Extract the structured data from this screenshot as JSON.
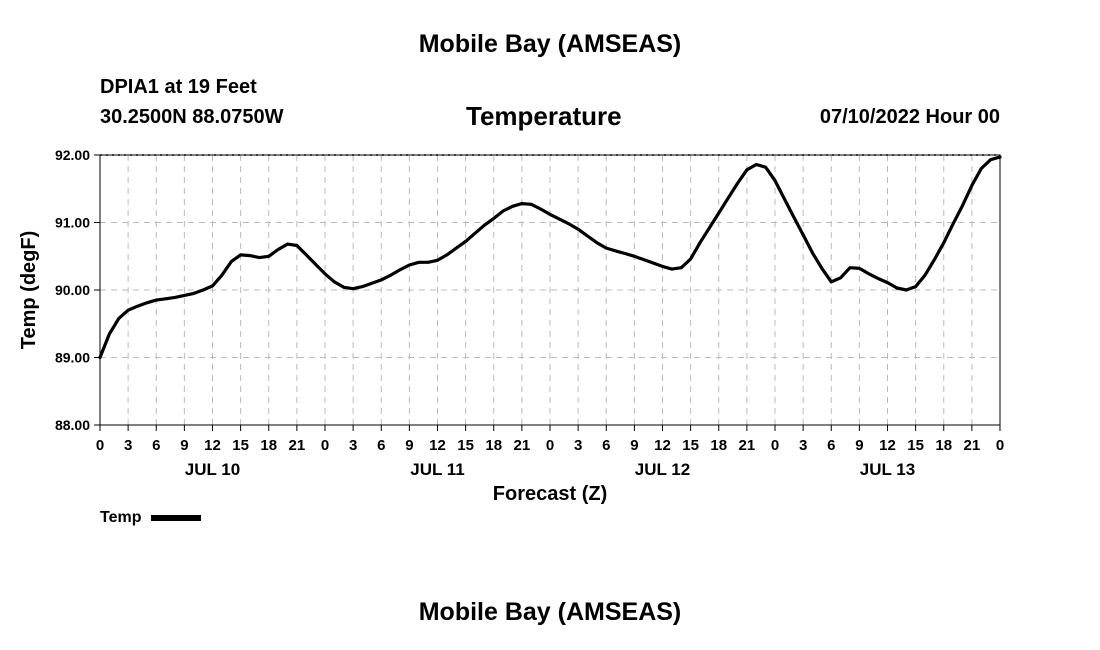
{
  "page": {
    "main_title": "Mobile Bay (AMSEAS)",
    "bottom_title": "Mobile Bay (AMSEAS)",
    "station": "DPIA1 at 19 Feet",
    "coords": "30.2500N  88.0750W",
    "valid_time": "07/10/2022 Hour 00"
  },
  "chart_data": {
    "type": "line",
    "title": "Temperature",
    "xlabel": "Forecast (Z)",
    "ylabel": "Temp (degF)",
    "x_unit": "hours",
    "xlim": [
      0,
      96
    ],
    "ylim": [
      88.0,
      92.0
    ],
    "y_ticks": [
      "88.00",
      "89.00",
      "90.00",
      "91.00",
      "92.00"
    ],
    "x_ticks": [
      {
        "h": 0,
        "label": "0"
      },
      {
        "h": 3,
        "label": "3"
      },
      {
        "h": 6,
        "label": "6"
      },
      {
        "h": 9,
        "label": "9"
      },
      {
        "h": 12,
        "label": "12"
      },
      {
        "h": 15,
        "label": "15"
      },
      {
        "h": 18,
        "label": "18"
      },
      {
        "h": 21,
        "label": "21"
      },
      {
        "h": 24,
        "label": "0"
      },
      {
        "h": 27,
        "label": "3"
      },
      {
        "h": 30,
        "label": "6"
      },
      {
        "h": 33,
        "label": "9"
      },
      {
        "h": 36,
        "label": "12"
      },
      {
        "h": 39,
        "label": "15"
      },
      {
        "h": 42,
        "label": "18"
      },
      {
        "h": 45,
        "label": "21"
      },
      {
        "h": 48,
        "label": "0"
      },
      {
        "h": 51,
        "label": "3"
      },
      {
        "h": 54,
        "label": "6"
      },
      {
        "h": 57,
        "label": "9"
      },
      {
        "h": 60,
        "label": "12"
      },
      {
        "h": 63,
        "label": "15"
      },
      {
        "h": 66,
        "label": "18"
      },
      {
        "h": 69,
        "label": "21"
      },
      {
        "h": 72,
        "label": "0"
      },
      {
        "h": 75,
        "label": "3"
      },
      {
        "h": 78,
        "label": "6"
      },
      {
        "h": 81,
        "label": "9"
      },
      {
        "h": 84,
        "label": "12"
      },
      {
        "h": 87,
        "label": "15"
      },
      {
        "h": 90,
        "label": "18"
      },
      {
        "h": 93,
        "label": "21"
      },
      {
        "h": 96,
        "label": "0"
      }
    ],
    "day_labels": [
      {
        "h": 12,
        "label": "JUL 10"
      },
      {
        "h": 36,
        "label": "JUL 11"
      },
      {
        "h": 60,
        "label": "JUL 12"
      },
      {
        "h": 84,
        "label": "JUL 13"
      }
    ],
    "grid": true,
    "legend": "bottom-left",
    "series": [
      {
        "name": "Temp",
        "color": "#000000",
        "x": [
          0,
          1,
          2,
          3,
          4,
          5,
          6,
          7,
          8,
          9,
          10,
          11,
          12,
          13,
          14,
          15,
          16,
          17,
          18,
          19,
          20,
          21,
          22,
          23,
          24,
          25,
          26,
          27,
          28,
          29,
          30,
          31,
          32,
          33,
          34,
          35,
          36,
          37,
          38,
          39,
          40,
          41,
          42,
          43,
          44,
          45,
          46,
          47,
          48,
          49,
          50,
          51,
          52,
          53,
          54,
          55,
          56,
          57,
          58,
          59,
          60,
          61,
          62,
          63,
          64,
          65,
          66,
          67,
          68,
          69,
          70,
          71,
          72,
          73,
          74,
          75,
          76,
          77,
          78,
          79,
          80,
          81,
          82,
          83,
          84,
          85,
          86,
          87,
          88,
          89,
          90,
          91,
          92,
          93,
          94,
          95,
          96
        ],
        "values": [
          89.0,
          89.35,
          89.58,
          89.7,
          89.76,
          89.81,
          89.85,
          89.87,
          89.89,
          89.92,
          89.95,
          90.0,
          90.06,
          90.22,
          90.42,
          90.52,
          90.51,
          90.48,
          90.5,
          90.6,
          90.68,
          90.66,
          90.52,
          90.38,
          90.24,
          90.12,
          90.04,
          90.02,
          90.05,
          90.1,
          90.15,
          90.22,
          90.3,
          90.37,
          90.41,
          90.41,
          90.44,
          90.52,
          90.62,
          90.72,
          90.84,
          90.96,
          91.06,
          91.17,
          91.24,
          91.28,
          91.27,
          91.2,
          91.12,
          91.05,
          90.98,
          90.9,
          90.8,
          90.7,
          90.62,
          90.58,
          90.54,
          90.5,
          90.45,
          90.4,
          90.35,
          90.31,
          90.33,
          90.46,
          90.7,
          90.92,
          91.14,
          91.36,
          91.58,
          91.78,
          91.86,
          91.82,
          91.62,
          91.35,
          91.08,
          90.82,
          90.55,
          90.32,
          90.12,
          90.18,
          90.33,
          90.32,
          90.24,
          90.17,
          90.11,
          90.03,
          90.0,
          90.05,
          90.22,
          90.45,
          90.7,
          90.98,
          91.25,
          91.55,
          91.8,
          91.93,
          91.97
        ]
      }
    ]
  }
}
